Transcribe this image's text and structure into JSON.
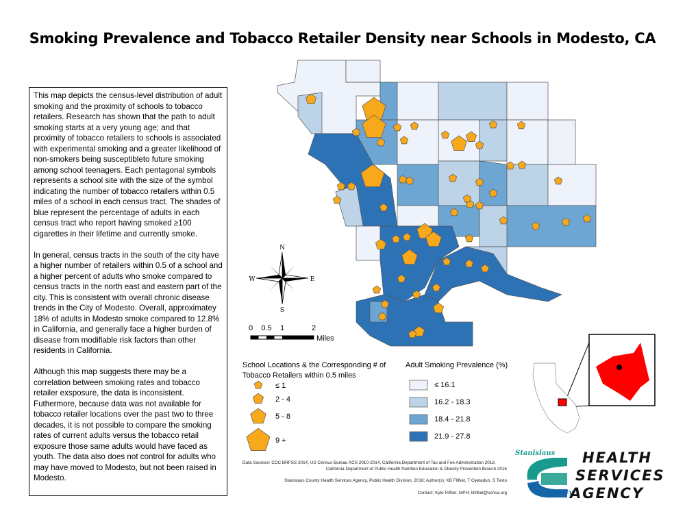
{
  "title": "Smoking Prevalence and Tobacco Retailer Density near Schools in Modesto, CA",
  "description": [
    "This map depicts the census-level distribution of adult smoking and the proximity of schools to tobacco retailers.  Research has shown that the path to adult smoking starts at a very young age; and that proximity of tobacco retailers to schools is associated with experimental smoking and a greater likelihood of non-smokers being susceptibleto future smoking among school teenagers.  Each pentagonal symbols represents a school site with the size of the symbol indicating the number of tobacco retailers within 0.5 miles of a school in each census tract.  The shades of blue represent the percentage of adults in each census tract who report having smoked ≥100 cigarettes in their lifetime and currently smoke.",
    "In general, census tracts in the south of the city have a higher number of retailers within 0.5 of a school and a higher percent of adults who smoke compared to census tracts in the north east and eastern part of the city.  This is consistent with overall chronic disease trends in the City of Modesto.  Overall, approximatey 18% of adults in Modesto smoke compared to 12.8% in California, and generally face a higher burden of disease from modifiable risk factors than other residents in California.",
    "Although this map suggests there may be a correlation between smoking rates and tobacco retailer exsposure, the data is inconsistent.  Futhermore, because data was not available for tobacco retailer locations over the past two to three decades, it is not possible to compare the smoking rates of current adults versus the tobacco retail exposure those same adults would have faced as youth.  The data also does not control for adults who may have moved to Modesto, but not been raised in Modesto."
  ],
  "compass": {
    "n": "N",
    "s": "S",
    "e": "E",
    "w": "W"
  },
  "scale_bar": {
    "ticks": [
      "0",
      "0.5",
      "1",
      "2"
    ],
    "unit": "Miles"
  },
  "school_legend": {
    "title": "School Locations & the Corresponding # of Tobacco Retailers within 0.5 miles",
    "classes": [
      "≤ 1",
      "2 - 4",
      "5 - 8",
      "9 +"
    ]
  },
  "prevalence_legend": {
    "title": "Adult Smoking Prevalence (%)",
    "classes": [
      {
        "label": "≤ 16.1",
        "color": "#eef2fa"
      },
      {
        "label": "16.2 - 18.3",
        "color": "#bcd3e8"
      },
      {
        "label": "18.4 - 21.8",
        "color": "#6ea6d3"
      },
      {
        "label": "21.9 - 27.8",
        "color": "#2e72b6"
      }
    ]
  },
  "school_color": "#f7a81b",
  "inset_highlight_color": "#ff0000",
  "sources": {
    "line1": "Data Sources: CDC BRFSS 2014, US Census Bureau ACS 2010-2014, California Department of Tax and Fee Administration 2018,",
    "line2": "California Department of Public Health Nutrition Education & Obesity Prevention Branch 2016",
    "author": "Stanislaus County Health Services Agency, Public Health Division, 2018; Author(s):  KB Flifket, T Oyeladun, S Testo",
    "contact": "Contact:  Kyle Flifket, MPH; kflifket@schsa.org"
  },
  "logo": {
    "stanislaus": "Stanislaus",
    "county": "County",
    "line1": "HEALTH",
    "line2": "SERVICES",
    "line3": "AGENCY"
  }
}
